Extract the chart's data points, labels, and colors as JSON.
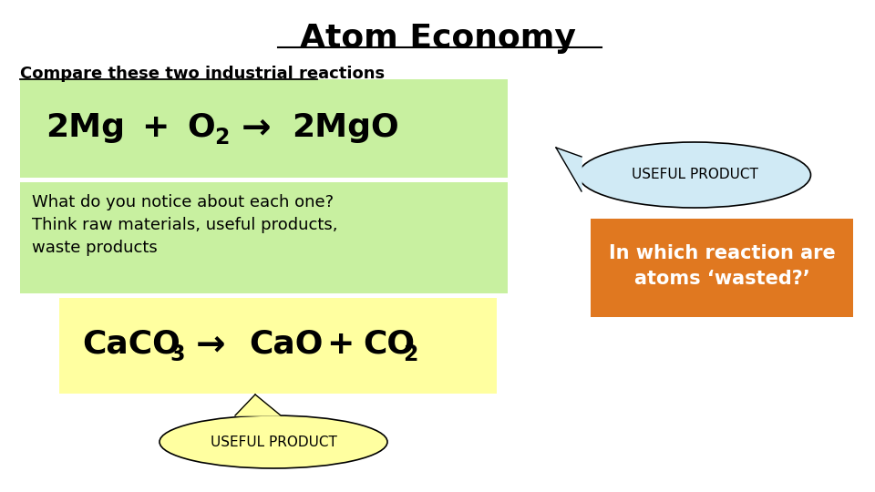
{
  "title": "Atom Economy",
  "subtitle": "Compare these two industrial reactions",
  "question1": "What do you notice about each one?",
  "question2": "Think raw materials, useful products,\nwaste products",
  "useful_product": "USEFUL PRODUCT",
  "orange_box": "In which reaction are\natoms ‘wasted?’",
  "green_box_color": "#c8f0a0",
  "yellow_box_color": "#ffffa0",
  "light_blue_ellipse_color": "#d0eaf5",
  "yellow_ellipse_color": "#ffffa0",
  "orange_box_color": "#e07820",
  "background_color": "#ffffff",
  "title_fontsize": 26,
  "subtitle_fontsize": 13,
  "reaction1_fontsize": 26,
  "reaction2_fontsize": 26,
  "body_fontsize": 13,
  "useful_fontsize": 11,
  "orange_fontsize": 15
}
